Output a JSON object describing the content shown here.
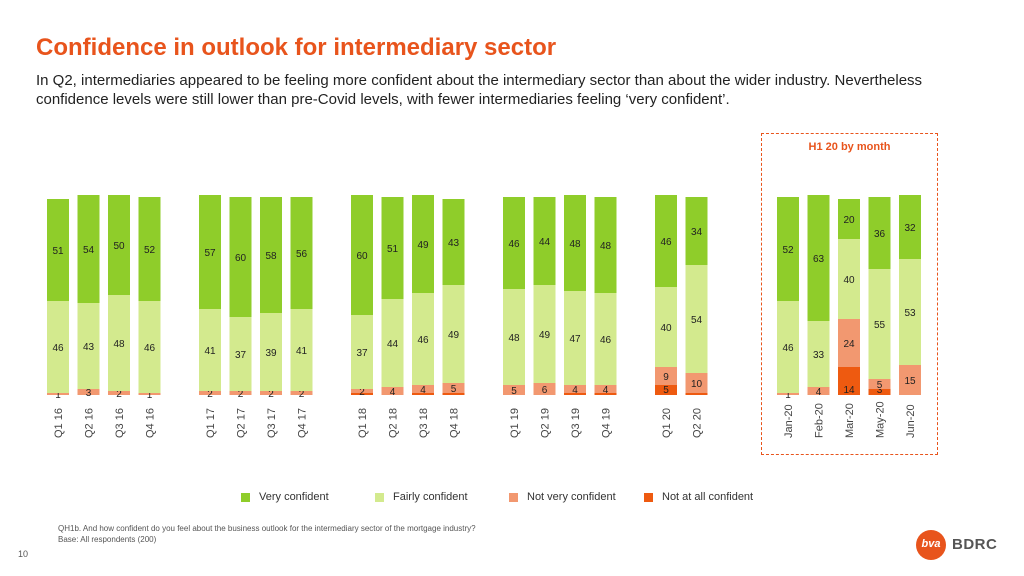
{
  "page": {
    "title": "Confidence in outlook for intermediary sector",
    "subtitle": "In Q2, intermediaries appeared to be feeling more confident about the intermediary sector than about the wider industry. Nevertheless confidence levels were still lower than pre-Covid levels, with fewer intermediaries feeling ‘very confident’.",
    "h1_label": "H1 20 by month",
    "footnote_line1": "QH1b. And how confident do you feel about the business outlook for the intermediary sector of the mortgage industry?",
    "footnote_line2": "Base: All respondents (200)",
    "page_number": "10",
    "logo_mark": "bva",
    "logo_text": "BDRC"
  },
  "colors": {
    "very_confident": "#8fcd2a",
    "fairly_confident": "#d3ea8e",
    "not_very_confident": "#f29870",
    "not_at_all_confident": "#ee5a10",
    "accent": "#e8541c"
  },
  "chart_data": {
    "type": "bar",
    "stacked": true,
    "normalized_to_100": true,
    "categories": [
      "Q1 16",
      "Q2 16",
      "Q3 16",
      "Q4 16",
      "Q1 17",
      "Q2 17",
      "Q3 17",
      "Q4 17",
      "Q1 18",
      "Q2 18",
      "Q3 18",
      "Q4 18",
      "Q1 19",
      "Q2 19",
      "Q3 19",
      "Q4 19",
      "Q1 20",
      "Q2 20",
      "Jan-20",
      "Feb-20",
      "Mar-20",
      "May-20",
      "Jun-20"
    ],
    "groups": [
      [
        0,
        1,
        2,
        3
      ],
      [
        4,
        5,
        6,
        7
      ],
      [
        8,
        9,
        10,
        11
      ],
      [
        12,
        13,
        14,
        15
      ],
      [
        16,
        17
      ],
      [
        18,
        19,
        20,
        21,
        22
      ]
    ],
    "series": [
      {
        "name": "Not at all confident",
        "key": "not_at_all_confident",
        "values": [
          0,
          0,
          0,
          0,
          0,
          0,
          0,
          0,
          1,
          0,
          1,
          1,
          0,
          0,
          1,
          1,
          5,
          1,
          0,
          0,
          14,
          3,
          0
        ]
      },
      {
        "name": "Not very confident",
        "key": "not_very_confident",
        "values": [
          1,
          3,
          2,
          1,
          2,
          2,
          2,
          2,
          2,
          4,
          4,
          5,
          5,
          6,
          4,
          4,
          9,
          10,
          1,
          4,
          24,
          5,
          15
        ]
      },
      {
        "name": "Fairly confident",
        "key": "fairly_confident",
        "values": [
          46,
          43,
          48,
          46,
          41,
          37,
          39,
          41,
          37,
          44,
          46,
          49,
          48,
          49,
          47,
          46,
          40,
          54,
          46,
          33,
          40,
          55,
          53
        ]
      },
      {
        "name": "Very confident",
        "key": "very_confident",
        "values": [
          51,
          54,
          50,
          52,
          57,
          60,
          58,
          56,
          60,
          51,
          49,
          43,
          46,
          44,
          48,
          48,
          46,
          34,
          52,
          63,
          20,
          36,
          32
        ]
      }
    ],
    "legend": [
      "Very confident",
      "Fairly confident",
      "Not very confident",
      "Not at all confident"
    ],
    "legend_position": "bottom"
  }
}
